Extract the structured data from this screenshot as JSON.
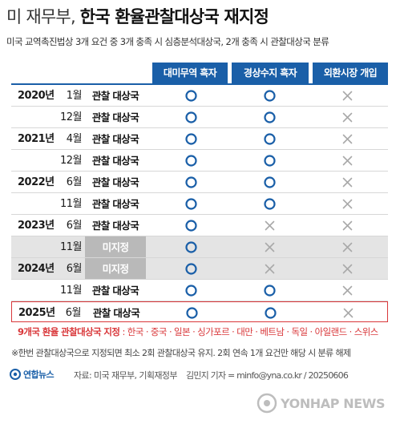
{
  "header": {
    "title_light": "미 재무부,",
    "title_bold": "한국 환율관찰대상국 재지정",
    "subtitle": "미국 교역촉진법상 3개 요건 중 3개 충족 시 심층분석대상국, 2개 충족 시 관찰대상국 분류"
  },
  "columns": [
    "대미무역 흑자",
    "경상수지 흑자",
    "외환시장 개입"
  ],
  "symbols": {
    "circle": "circle-mark",
    "cross": "cross-mark"
  },
  "colors": {
    "accent": "#1a5fa8",
    "highlight": "#d9373a",
    "designated_bg": "#b9b9b9",
    "shaded_row": "#e4e4e4"
  },
  "rows": [
    {
      "year": "2020년",
      "month": "1월",
      "status": "관찰 대상국",
      "marks": [
        "circle",
        "circle",
        "cross"
      ]
    },
    {
      "year": "",
      "month": "12월",
      "status": "관찰 대상국",
      "marks": [
        "circle",
        "circle",
        "cross"
      ]
    },
    {
      "year": "2021년",
      "month": "4월",
      "status": "관찰 대상국",
      "marks": [
        "circle",
        "circle",
        "cross"
      ]
    },
    {
      "year": "",
      "month": "12월",
      "status": "관찰 대상국",
      "marks": [
        "circle",
        "circle",
        "cross"
      ]
    },
    {
      "year": "2022년",
      "month": "6월",
      "status": "관찰 대상국",
      "marks": [
        "circle",
        "circle",
        "cross"
      ]
    },
    {
      "year": "",
      "month": "11월",
      "status": "관찰 대상국",
      "marks": [
        "circle",
        "circle",
        "cross"
      ]
    },
    {
      "year": "2023년",
      "month": "6월",
      "status": "관찰 대상국",
      "marks": [
        "circle",
        "cross",
        "cross"
      ]
    },
    {
      "year": "",
      "month": "11월",
      "status": "미지정",
      "marks": [
        "circle",
        "cross",
        "cross"
      ]
    },
    {
      "year": "2024년",
      "month": "6월",
      "status": "미지정",
      "marks": [
        "circle",
        "cross",
        "cross"
      ]
    },
    {
      "year": "",
      "month": "11월",
      "status": "관찰 대상국",
      "marks": [
        "circle",
        "circle",
        "cross"
      ]
    },
    {
      "year": "2025년",
      "month": "6월",
      "status": "관찰 대상국",
      "marks": [
        "circle",
        "circle",
        "cross"
      ]
    }
  ],
  "countries": {
    "title": "9개국 환율 관찰대상국 지정",
    "list": ": 한국 · 중국 · 일본 · 싱가포르 · 대만 · 베트남 · 독일 · 아일랜드 · 스위스"
  },
  "footnote": "※한번 관찰대상국으로 지정되면 최소 2회 관찰대상국 유지. 2회 연속 1개 요건만 해당 시 분류 해제",
  "footer": {
    "logo": "연합뉴스",
    "source": "자료: 미국 재무부, 기획재정부",
    "credit": "김민지 기자 = minfo@yna.co.kr / 20250606"
  },
  "watermark": "YONHAP NEWS"
}
